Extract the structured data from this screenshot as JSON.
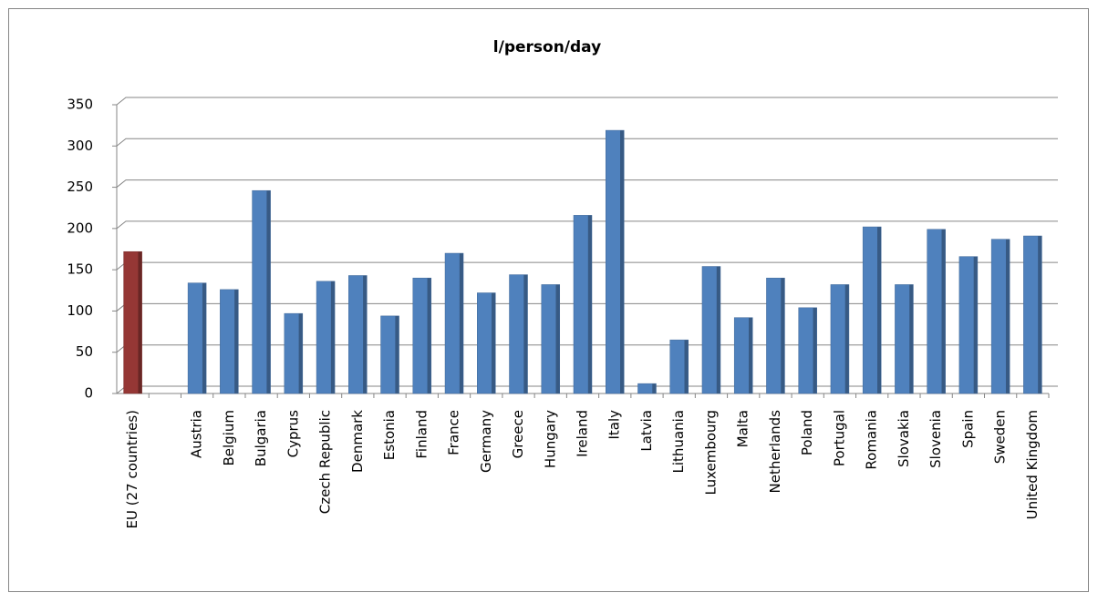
{
  "chart_data": {
    "type": "bar",
    "title": "l/person/day",
    "categories": [
      "EU (27 countries)",
      null,
      "Austria",
      "Belgium",
      "Bulgaria",
      "Cyprus",
      "Czech Republic",
      "Denmark",
      "Estonia",
      "Finland",
      "France",
      "Germany",
      "Greece",
      "Hungary",
      "Ireland",
      "Italy",
      "Latvia",
      "Lithuania",
      "Luxembourg",
      "Malta",
      "Netherlands",
      "Poland",
      "Portugal",
      "Romania",
      "Slovakia",
      "Slovenia",
      "Spain",
      "Sweden",
      "United Kingdom"
    ],
    "values": [
      172,
      null,
      134,
      126,
      246,
      97,
      136,
      143,
      94,
      140,
      170,
      122,
      144,
      132,
      216,
      319,
      12,
      65,
      154,
      92,
      140,
      104,
      132,
      202,
      132,
      199,
      166,
      187,
      191
    ],
    "colors": [
      "#953735",
      null,
      "#4f81bd",
      "#4f81bd",
      "#4f81bd",
      "#4f81bd",
      "#4f81bd",
      "#4f81bd",
      "#4f81bd",
      "#4f81bd",
      "#4f81bd",
      "#4f81bd",
      "#4f81bd",
      "#4f81bd",
      "#4f81bd",
      "#4f81bd",
      "#4f81bd",
      "#4f81bd",
      "#4f81bd",
      "#4f81bd",
      "#4f81bd",
      "#4f81bd",
      "#4f81bd",
      "#4f81bd",
      "#4f81bd",
      "#4f81bd",
      "#4f81bd",
      "#4f81bd",
      "#4f81bd"
    ],
    "ylim": [
      0,
      350
    ],
    "yticks": [
      0,
      50,
      100,
      150,
      200,
      250,
      300,
      350
    ],
    "grid": true
  }
}
